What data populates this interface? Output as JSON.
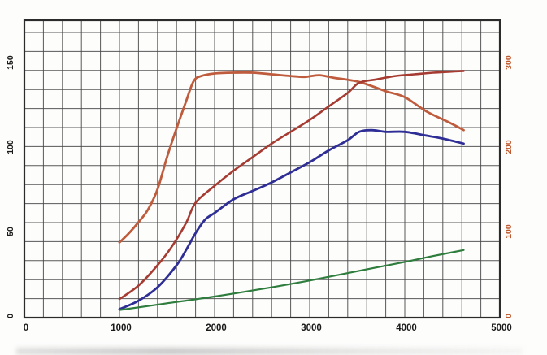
{
  "chart_data": {
    "type": "line",
    "title": "",
    "xlabel": "",
    "ylabel": "",
    "legend": "none",
    "grid": "on",
    "x_axis": {
      "min": 0,
      "max": 5000,
      "tick_labels": [
        "0",
        "1000",
        "2000",
        "3000",
        "4000",
        "5000"
      ],
      "tick_values": [
        0,
        1000,
        2000,
        3000,
        4000,
        5000
      ],
      "minor_grid_step": 200,
      "label_color": "#1a1a1a"
    },
    "y_axis_left": {
      "min": 0,
      "max": 176,
      "tick_labels": [
        "0",
        "50",
        "100",
        "150"
      ],
      "tick_values": [
        0,
        50,
        100,
        150
      ],
      "label_color": "#1a1a1a",
      "label_rotation": "vertical"
    },
    "y_axis_right": {
      "min": 0,
      "max": 352,
      "tick_labels": [
        "0",
        "100",
        "200",
        "300"
      ],
      "tick_values": [
        0,
        100,
        200,
        300
      ],
      "label_color": "#c05a2e",
      "label_rotation": "vertical"
    },
    "series": [
      {
        "name": "orange-curve-right-axis",
        "axis": "right",
        "color": "#bf5b3d",
        "stroke_width": 2.8,
        "points": [
          [
            1000,
            89
          ],
          [
            1100,
            100
          ],
          [
            1200,
            113
          ],
          [
            1300,
            128
          ],
          [
            1400,
            152
          ],
          [
            1500,
            190
          ],
          [
            1600,
            224
          ],
          [
            1700,
            256
          ],
          [
            1780,
            280
          ],
          [
            1860,
            286
          ],
          [
            2000,
            289
          ],
          [
            2200,
            290
          ],
          [
            2400,
            290
          ],
          [
            2600,
            288
          ],
          [
            2800,
            286
          ],
          [
            2950,
            285
          ],
          [
            3100,
            287
          ],
          [
            3250,
            284
          ],
          [
            3520,
            279
          ],
          [
            3800,
            268
          ],
          [
            4000,
            261
          ],
          [
            4230,
            244
          ],
          [
            4450,
            232
          ],
          [
            4620,
            222
          ]
        ]
      },
      {
        "name": "dark-red-curve-left-axis",
        "axis": "left",
        "color": "#a63a32",
        "stroke_width": 2.6,
        "points": [
          [
            1000,
            11
          ],
          [
            1200,
            19
          ],
          [
            1400,
            31
          ],
          [
            1550,
            42
          ],
          [
            1700,
            56
          ],
          [
            1800,
            68
          ],
          [
            2000,
            78
          ],
          [
            2200,
            87
          ],
          [
            2400,
            95
          ],
          [
            2600,
            103
          ],
          [
            2800,
            110
          ],
          [
            3000,
            117
          ],
          [
            3200,
            125
          ],
          [
            3400,
            133
          ],
          [
            3520,
            139
          ],
          [
            3700,
            141
          ],
          [
            3900,
            143
          ],
          [
            4100,
            144
          ],
          [
            4300,
            145
          ],
          [
            4620,
            146
          ]
        ]
      },
      {
        "name": "blue-curve-left-axis",
        "axis": "left",
        "color": "#2f2f96",
        "stroke_width": 2.8,
        "points": [
          [
            1000,
            5
          ],
          [
            1200,
            10
          ],
          [
            1400,
            18
          ],
          [
            1600,
            31
          ],
          [
            1700,
            40
          ],
          [
            1800,
            50
          ],
          [
            1900,
            58
          ],
          [
            2000,
            62
          ],
          [
            2200,
            70
          ],
          [
            2400,
            75
          ],
          [
            2600,
            80
          ],
          [
            2800,
            86
          ],
          [
            3000,
            92
          ],
          [
            3200,
            99
          ],
          [
            3400,
            105
          ],
          [
            3520,
            110
          ],
          [
            3650,
            111
          ],
          [
            3800,
            110
          ],
          [
            4000,
            110
          ],
          [
            4200,
            108
          ],
          [
            4400,
            106
          ],
          [
            4620,
            103
          ]
        ]
      },
      {
        "name": "green-line-left-axis",
        "axis": "left",
        "color": "#2e7d3e",
        "stroke_width": 2.2,
        "points": [
          [
            1000,
            4.5
          ],
          [
            1500,
            8.5
          ],
          [
            2000,
            12.5
          ],
          [
            2500,
            17
          ],
          [
            3000,
            22
          ],
          [
            3500,
            27.5
          ],
          [
            4000,
            33
          ],
          [
            4300,
            36.5
          ],
          [
            4620,
            40
          ]
        ]
      }
    ],
    "colors": {
      "grid": "#474747",
      "border": "#2b2b2b",
      "background": "#fdfdfc"
    }
  }
}
